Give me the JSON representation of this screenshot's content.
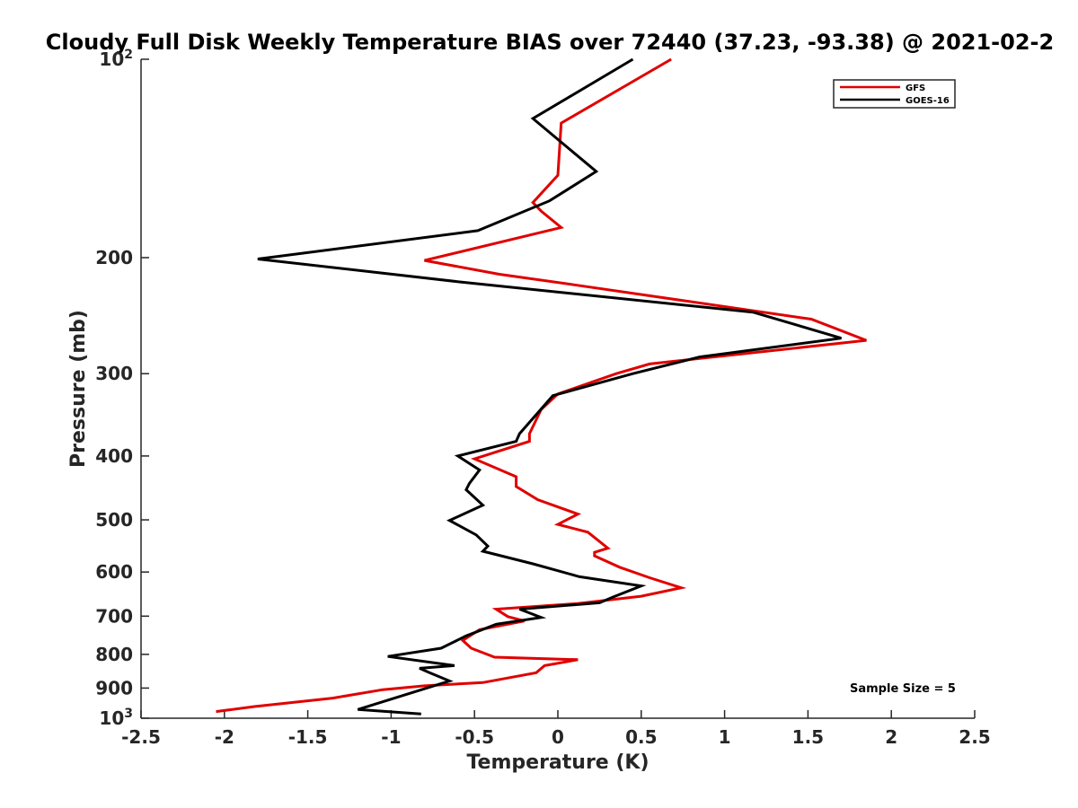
{
  "chart_data": {
    "type": "line",
    "title": "Cloudy Full Disk Weekly Temperature BIAS over 72440 (37.23, -93.38) @ 2021-02-2",
    "xlabel": "Temperature (K)",
    "ylabel": "Pressure (mb)",
    "xlim": [
      -2.5,
      2.5
    ],
    "ylim": [
      100,
      1000
    ],
    "y_scale": "log",
    "y_reversed": true,
    "x_ticks": [
      "-2.5",
      "-2",
      "-1.5",
      "-1",
      "-0.5",
      "0",
      "0.5",
      "1",
      "1.5",
      "2",
      "2.5"
    ],
    "y_ticks": [
      {
        "value": 100,
        "label": "10",
        "sup": "2"
      },
      {
        "value": 200,
        "label": "200",
        "sup": ""
      },
      {
        "value": 300,
        "label": "300",
        "sup": ""
      },
      {
        "value": 400,
        "label": "400",
        "sup": ""
      },
      {
        "value": 500,
        "label": "500",
        "sup": ""
      },
      {
        "value": 600,
        "label": "600",
        "sup": ""
      },
      {
        "value": 700,
        "label": "700",
        "sup": ""
      },
      {
        "value": 800,
        "label": "800",
        "sup": ""
      },
      {
        "value": 900,
        "label": "900",
        "sup": ""
      },
      {
        "value": 1000,
        "label": "10",
        "sup": "3"
      }
    ],
    "grid": false,
    "legend_position": "top-right",
    "annotation": "Sample Size = 5",
    "series": [
      {
        "name": "GFS",
        "color": "#e00000",
        "points": [
          [
            0.68,
            100
          ],
          [
            0.02,
            125
          ],
          [
            0.0,
            150
          ],
          [
            -0.15,
            165
          ],
          [
            -0.1,
            170
          ],
          [
            0.02,
            180
          ],
          [
            -0.8,
            202
          ],
          [
            -0.35,
            212
          ],
          [
            0.1,
            220
          ],
          [
            1.52,
            248
          ],
          [
            1.85,
            267
          ],
          [
            0.55,
            290
          ],
          [
            0.35,
            300
          ],
          [
            0.0,
            322
          ],
          [
            -0.1,
            340
          ],
          [
            -0.17,
            370
          ],
          [
            -0.17,
            380
          ],
          [
            -0.5,
            404
          ],
          [
            -0.25,
            430
          ],
          [
            -0.25,
            445
          ],
          [
            -0.12,
            466
          ],
          [
            0.12,
            490
          ],
          [
            0.0,
            508
          ],
          [
            0.18,
            522
          ],
          [
            0.3,
            552
          ],
          [
            0.22,
            560
          ],
          [
            0.22,
            567
          ],
          [
            0.37,
            590
          ],
          [
            0.55,
            612
          ],
          [
            0.74,
            634
          ],
          [
            0.5,
            653
          ],
          [
            0.12,
            670
          ],
          [
            -0.37,
            683
          ],
          [
            -0.3,
            701
          ],
          [
            -0.2,
            712
          ],
          [
            -0.47,
            734
          ],
          [
            -0.57,
            762
          ],
          [
            -0.52,
            783
          ],
          [
            -0.38,
            808
          ],
          [
            0.12,
            815
          ],
          [
            -0.08,
            832
          ],
          [
            -0.13,
            853
          ],
          [
            -0.45,
            883
          ],
          [
            -0.8,
            893
          ],
          [
            -1.05,
            905
          ],
          [
            -1.35,
            932
          ],
          [
            -1.82,
            960
          ],
          [
            -2.05,
            977
          ]
        ]
      },
      {
        "name": "GOES-16",
        "color": "#000000",
        "points": [
          [
            0.45,
            100
          ],
          [
            -0.15,
            123
          ],
          [
            0.23,
            148
          ],
          [
            -0.05,
            164
          ],
          [
            -0.48,
            182
          ],
          [
            -1.8,
            201
          ],
          [
            -0.57,
            218
          ],
          [
            1.17,
            242
          ],
          [
            1.7,
            265
          ],
          [
            0.85,
            283
          ],
          [
            0.45,
            300
          ],
          [
            -0.03,
            324
          ],
          [
            -0.23,
            370
          ],
          [
            -0.25,
            380
          ],
          [
            -0.6,
            400
          ],
          [
            -0.47,
            420
          ],
          [
            -0.53,
            440
          ],
          [
            -0.55,
            450
          ],
          [
            -0.45,
            475
          ],
          [
            -0.65,
            501
          ],
          [
            -0.49,
            527
          ],
          [
            -0.42,
            548
          ],
          [
            -0.45,
            558
          ],
          [
            -0.15,
            583
          ],
          [
            0.13,
            610
          ],
          [
            0.5,
            630
          ],
          [
            0.33,
            655
          ],
          [
            0.25,
            668
          ],
          [
            -0.23,
            683
          ],
          [
            -0.1,
            703
          ],
          [
            -0.37,
            720
          ],
          [
            -0.55,
            750
          ],
          [
            -0.7,
            783
          ],
          [
            -1.02,
            806
          ],
          [
            -0.62,
            832
          ],
          [
            -0.83,
            840
          ],
          [
            -0.77,
            853
          ],
          [
            -0.65,
            878
          ],
          [
            -1.2,
            970
          ],
          [
            -0.82,
            985
          ]
        ]
      }
    ]
  }
}
